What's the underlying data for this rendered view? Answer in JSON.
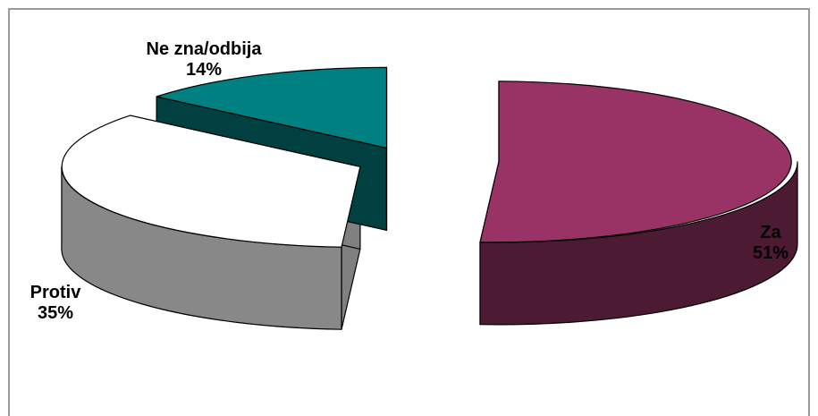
{
  "chart_data": {
    "type": "pie",
    "title": "",
    "labels": [
      "Za",
      "Protiv",
      "Ne zna/odbija"
    ],
    "values": [
      51,
      35,
      14
    ],
    "value_labels": [
      "51%",
      "35%",
      "14%"
    ],
    "colors": [
      "#993366",
      "#ffffff",
      "#008080"
    ],
    "side_colors": [
      "#4d1a33",
      "#808080",
      "#004040"
    ],
    "legend": "none",
    "three_d": true,
    "exploded": true
  }
}
